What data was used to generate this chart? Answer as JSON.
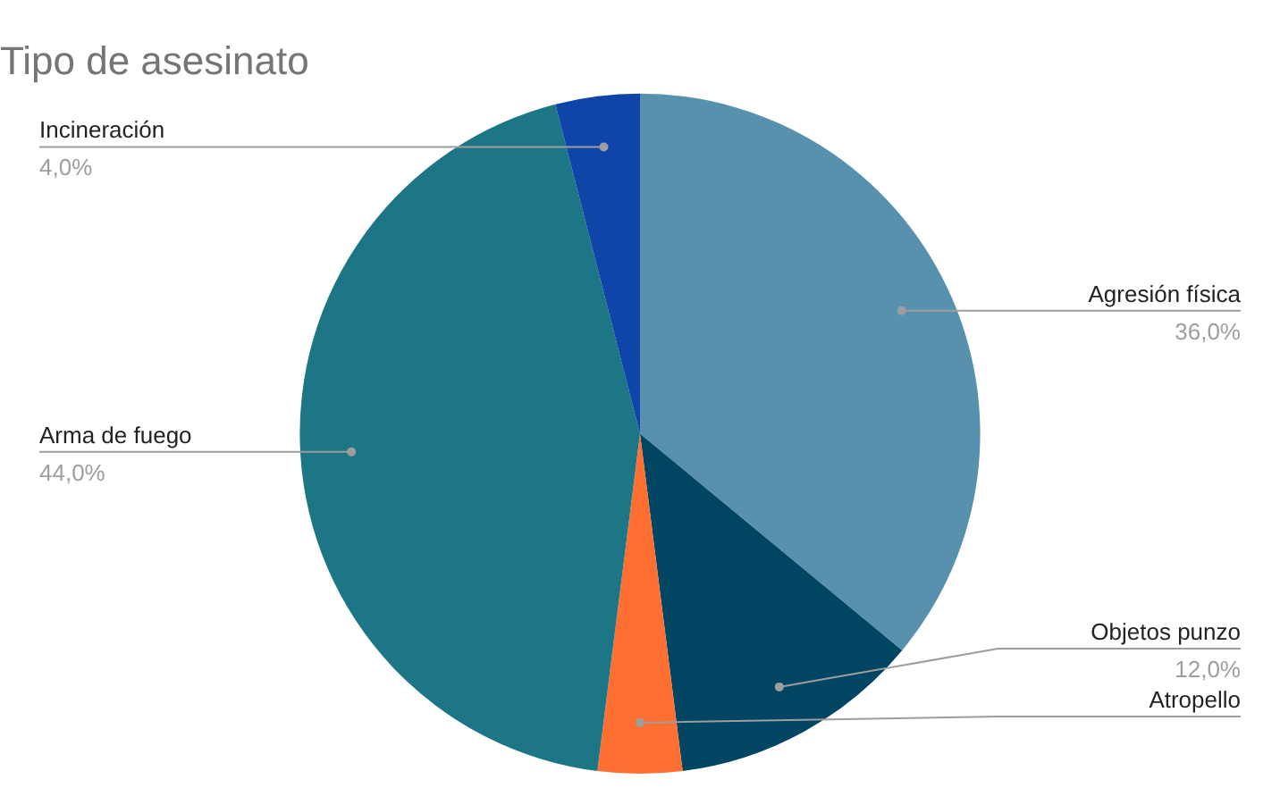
{
  "chart_data": {
    "type": "pie",
    "title": "Tipo de asesinato",
    "categories": [
      "Agresión física",
      "Objetos punzo",
      "Atropello",
      "Arma de fuego",
      "Incineración"
    ],
    "values": [
      36,
      12,
      4,
      44,
      4
    ],
    "colors": [
      "#5891ad",
      "#004561",
      "#ff6f31",
      "#1c7685",
      "#0f45a8"
    ],
    "value_labels": [
      "36,0%",
      "12,0%",
      null,
      "44,0%",
      "4,0%"
    ],
    "legend": false
  }
}
